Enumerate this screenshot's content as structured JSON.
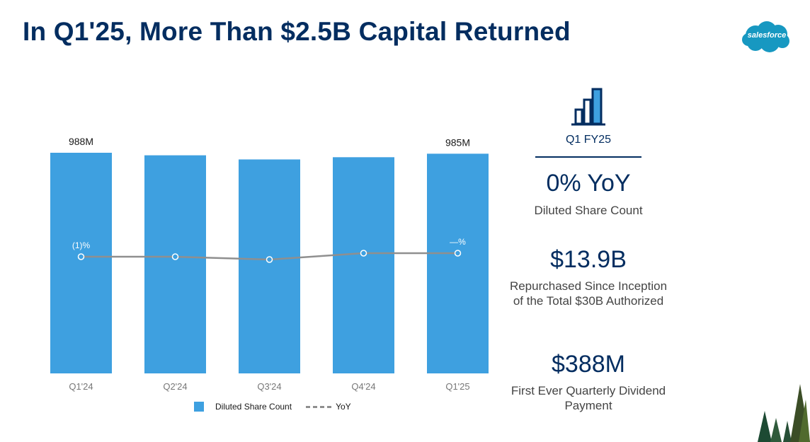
{
  "title": "In Q1'25, More Than $2.5B Capital Returned",
  "brand": {
    "logo_text": "salesforce",
    "color": "#1798c1"
  },
  "colors": {
    "navy": "#032d60",
    "bar": "#3ea0e0",
    "line": "#8f8f8f"
  },
  "chart_data": {
    "type": "bar",
    "categories": [
      "Q1'24",
      "Q2'24",
      "Q3'24",
      "Q4'24",
      "Q1'25"
    ],
    "series": [
      {
        "name": "Diluted Share Count",
        "type": "bar",
        "values": [
          988,
          980,
          967,
          974,
          985
        ],
        "unit": "M"
      },
      {
        "name": "YoY",
        "type": "line",
        "values": [
          -1,
          -1,
          -1.5,
          0,
          0
        ],
        "unit": "%"
      }
    ],
    "bar_labels": [
      "988M",
      "",
      "",
      "",
      "985M"
    ],
    "line_labels": [
      "(1)%",
      "",
      "",
      "",
      "—%"
    ],
    "bar_ylim": [
      0,
      1000
    ],
    "line_ylim": [
      -8,
      6
    ],
    "legend": [
      "Diluted Share Count",
      "YoY"
    ],
    "legend_position": "bottom"
  },
  "side": {
    "icon": "bar-chart-icon",
    "period": "Q1 FY25",
    "stats": [
      {
        "value": "0% YoY",
        "desc": "Diluted Share Count"
      },
      {
        "value": "$13.9B",
        "desc": "Repurchased Since Inception of the Total $30B Authorized"
      },
      {
        "value": "$388M",
        "desc": "First Ever Quarterly Dividend Payment"
      }
    ]
  }
}
